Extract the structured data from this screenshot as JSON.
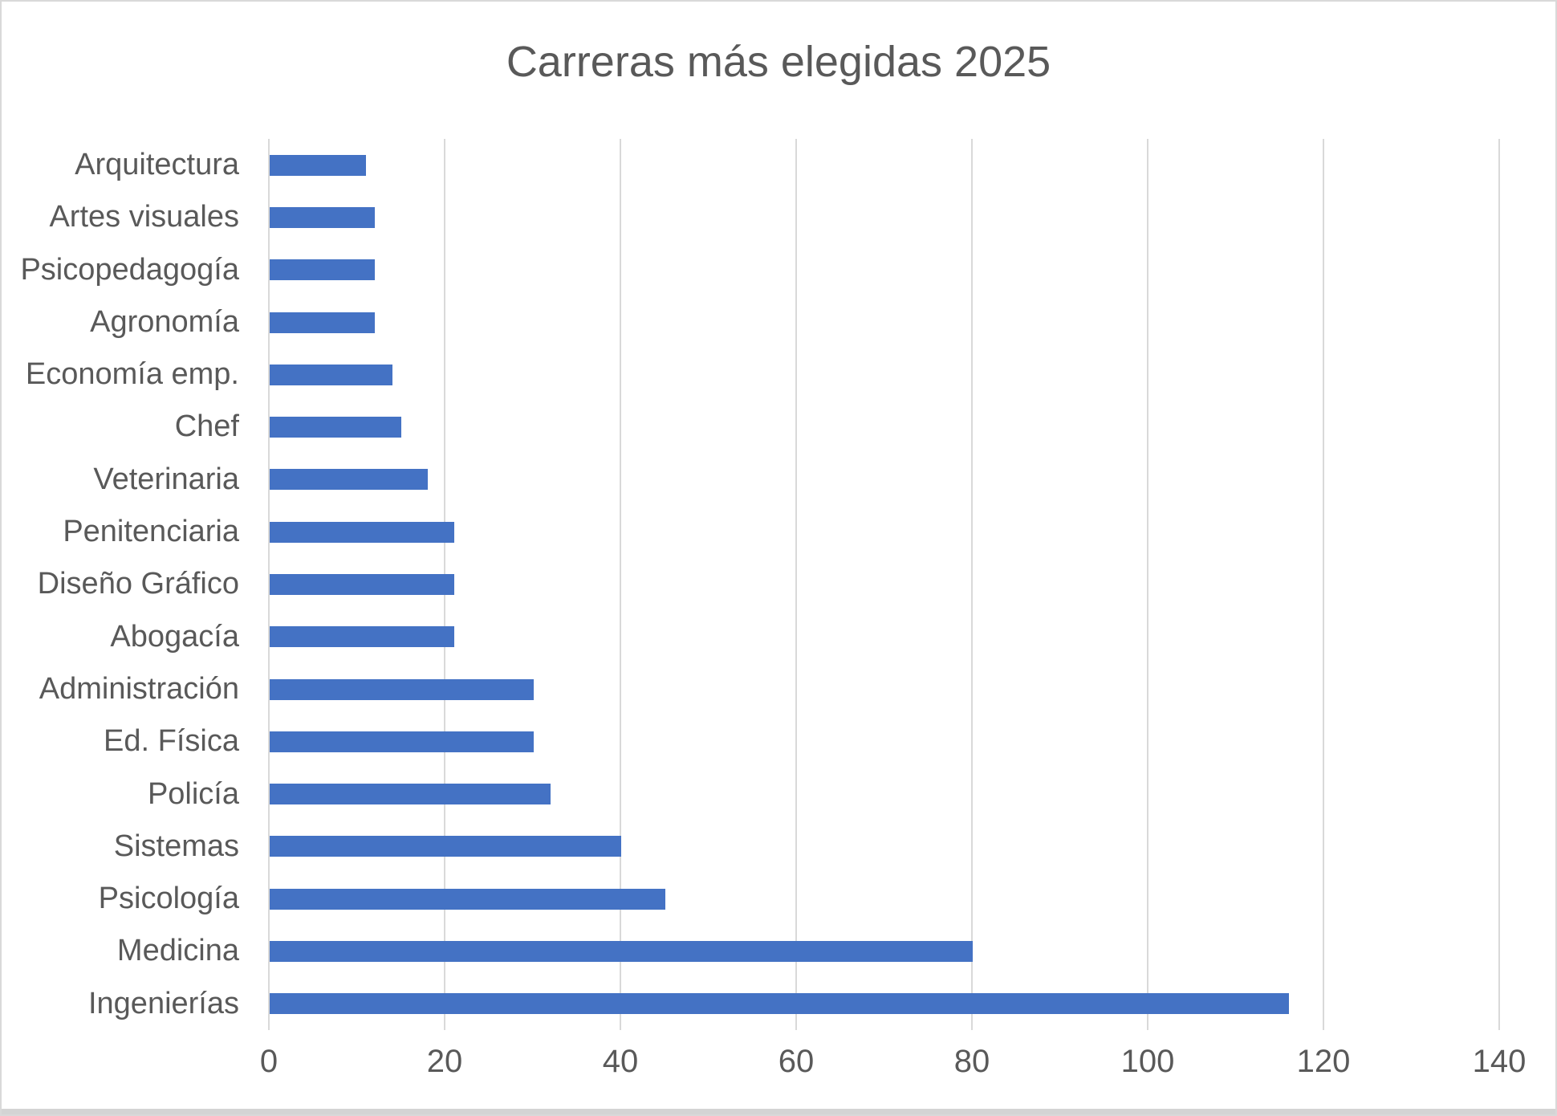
{
  "title": "Carreras más elegidas 2025",
  "chart_data": {
    "type": "bar",
    "orientation": "horizontal",
    "title": "Carreras más elegidas 2025",
    "xlabel": "",
    "ylabel": "",
    "xlim": [
      0,
      140
    ],
    "x_ticks": [
      0,
      20,
      40,
      60,
      80,
      100,
      120,
      140
    ],
    "grid": true,
    "legend": false,
    "categories_top_to_bottom": [
      "Arquitectura",
      "Artes visuales",
      "Psicopedagogía",
      "Agronomía",
      "Economía emp.",
      "Chef",
      "Veterinaria",
      "Penitenciaria",
      "Diseño Gráfico",
      "Abogacía",
      "Administración",
      "Ed. Física",
      "Policía",
      "Sistemas",
      "Psicología",
      "Medicina",
      "Ingenierías"
    ],
    "values": [
      11,
      12,
      12,
      12,
      14,
      15,
      18,
      21,
      21,
      21,
      30,
      30,
      32,
      40,
      45,
      80,
      116
    ],
    "bar_color": "#4472C4",
    "grid_color": "#D9D9D9",
    "text_color": "#595959"
  }
}
